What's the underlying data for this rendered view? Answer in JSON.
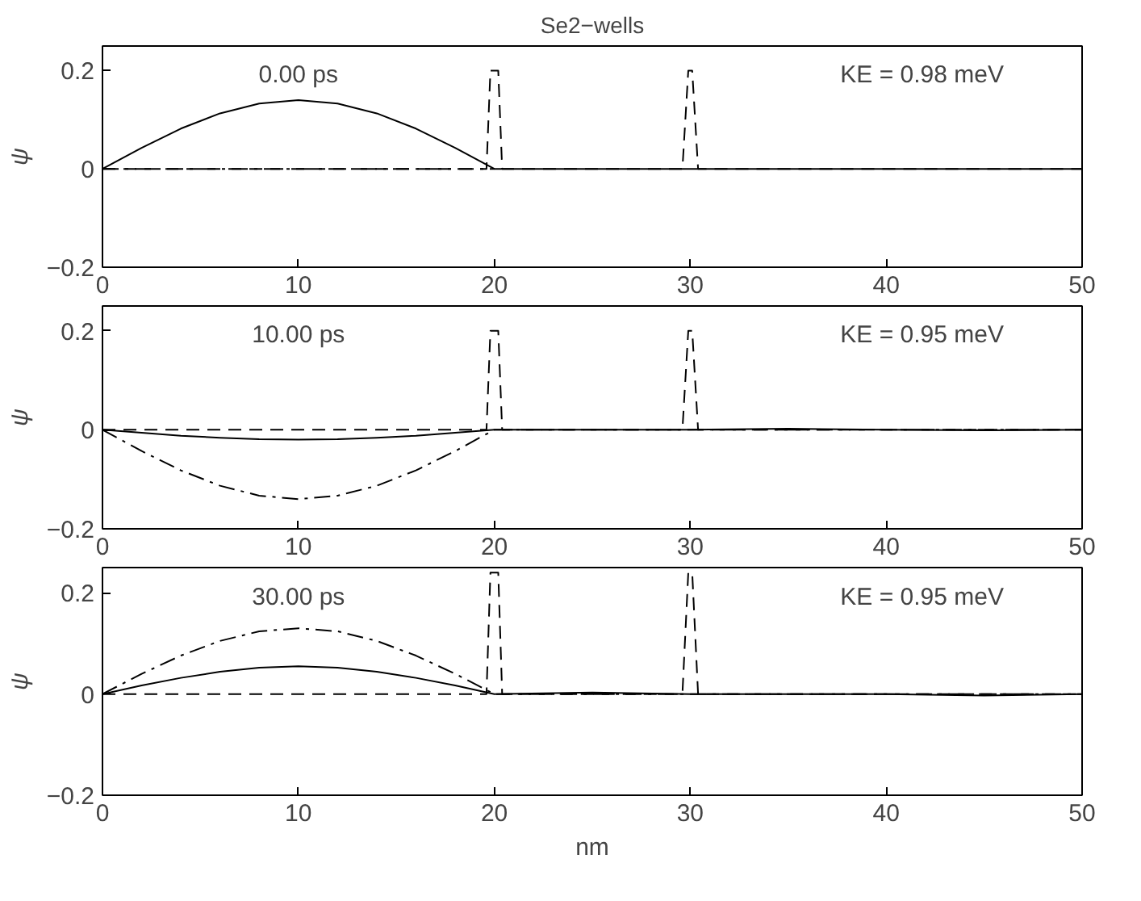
{
  "chart_data": [
    {
      "type": "line",
      "title": "Se2−wells",
      "ylabel": "ψ",
      "annotations": [
        "0.00 ps",
        "KE =  0.98 meV"
      ],
      "xlim": [
        0,
        50
      ],
      "xticks": [
        0,
        10,
        20,
        30,
        40,
        50
      ],
      "ylim": [
        -0.2,
        0.25
      ],
      "yticks": [
        -0.2,
        0,
        0.2
      ],
      "grid": false,
      "series": [
        {
          "color": "#000000",
          "line_style": "solid",
          "x": [
            0,
            2,
            4,
            6,
            8,
            10,
            12,
            14,
            16,
            18,
            20,
            25,
            30,
            35,
            40,
            45,
            50
          ],
          "values": [
            0,
            0.043,
            0.082,
            0.113,
            0.133,
            0.14,
            0.133,
            0.113,
            0.082,
            0.043,
            0,
            0,
            0,
            0,
            0,
            0,
            0
          ]
        },
        {
          "color": "#000000",
          "line_style": "dashed",
          "x": [
            0,
            19.6,
            19.8,
            20.2,
            20.4,
            29.6,
            29.9,
            30.1,
            30.4,
            50
          ],
          "values": [
            0,
            0,
            0.2,
            0.2,
            0,
            0,
            0.2,
            0.2,
            0,
            0
          ]
        },
        {
          "color": "#000000",
          "line_style": "dashdot",
          "x": [
            0,
            10,
            20
          ],
          "values": [
            0,
            0,
            0
          ]
        }
      ]
    },
    {
      "type": "line",
      "ylabel": "ψ",
      "annotations": [
        "10.00 ps",
        "KE =  0.95 meV"
      ],
      "xlim": [
        0,
        50
      ],
      "xticks": [
        0,
        10,
        20,
        30,
        40,
        50
      ],
      "ylim": [
        -0.2,
        0.25
      ],
      "yticks": [
        -0.2,
        0,
        0.2
      ],
      "grid": false,
      "series": [
        {
          "color": "#000000",
          "line_style": "solid",
          "x": [
            0,
            2,
            4,
            6,
            8,
            10,
            12,
            14,
            16,
            18,
            20,
            25,
            30,
            35,
            40,
            45,
            50
          ],
          "values": [
            0,
            -0.006,
            -0.012,
            -0.016,
            -0.019,
            -0.02,
            -0.019,
            -0.016,
            -0.012,
            -0.006,
            0,
            0,
            0,
            0.002,
            0,
            -0.001,
            0
          ]
        },
        {
          "color": "#000000",
          "line_style": "dashdot",
          "x": [
            0,
            2,
            4,
            6,
            8,
            10,
            12,
            14,
            16,
            18,
            20,
            25,
            30,
            35,
            40,
            45,
            50
          ],
          "values": [
            0,
            -0.043,
            -0.082,
            -0.113,
            -0.133,
            -0.14,
            -0.133,
            -0.113,
            -0.082,
            -0.043,
            0,
            0,
            0,
            0,
            0,
            0,
            0
          ]
        },
        {
          "color": "#000000",
          "line_style": "dashed",
          "x": [
            0,
            19.6,
            19.8,
            20.2,
            20.4,
            29.6,
            29.9,
            30.1,
            30.4,
            50
          ],
          "values": [
            0,
            0,
            0.2,
            0.2,
            0,
            0,
            0.2,
            0.2,
            0,
            0
          ]
        }
      ]
    },
    {
      "type": "line",
      "ylabel": "ψ",
      "xlabel": "nm",
      "annotations": [
        "30.00 ps",
        "KE =  0.95 meV"
      ],
      "xlim": [
        0,
        50
      ],
      "xticks": [
        0,
        10,
        20,
        30,
        40,
        50
      ],
      "ylim": [
        -0.2,
        0.25
      ],
      "yticks": [
        -0.2,
        0,
        0.2
      ],
      "grid": false,
      "series": [
        {
          "color": "#000000",
          "line_style": "solid",
          "x": [
            0,
            2,
            4,
            6,
            8,
            10,
            12,
            14,
            16,
            18,
            20,
            25,
            30,
            35,
            40,
            45,
            50
          ],
          "values": [
            0,
            0.017,
            0.032,
            0.044,
            0.052,
            0.055,
            0.052,
            0.044,
            0.032,
            0.017,
            0,
            0.003,
            0,
            0,
            0,
            -0.003,
            0
          ]
        },
        {
          "color": "#000000",
          "line_style": "dashdot",
          "x": [
            0,
            2,
            4,
            6,
            8,
            10,
            12,
            14,
            16,
            18,
            20,
            25,
            30,
            35,
            40,
            45,
            50
          ],
          "values": [
            0,
            0.04,
            0.076,
            0.105,
            0.124,
            0.13,
            0.124,
            0.105,
            0.076,
            0.04,
            0,
            0,
            0,
            0,
            0,
            0,
            0
          ]
        },
        {
          "color": "#000000",
          "line_style": "dashed",
          "x": [
            0,
            19.6,
            19.8,
            20.2,
            20.4,
            29.6,
            29.9,
            30.1,
            30.4,
            50
          ],
          "values": [
            0,
            0,
            0.24,
            0.24,
            0,
            0,
            0.24,
            0.24,
            0,
            0
          ]
        }
      ]
    }
  ]
}
